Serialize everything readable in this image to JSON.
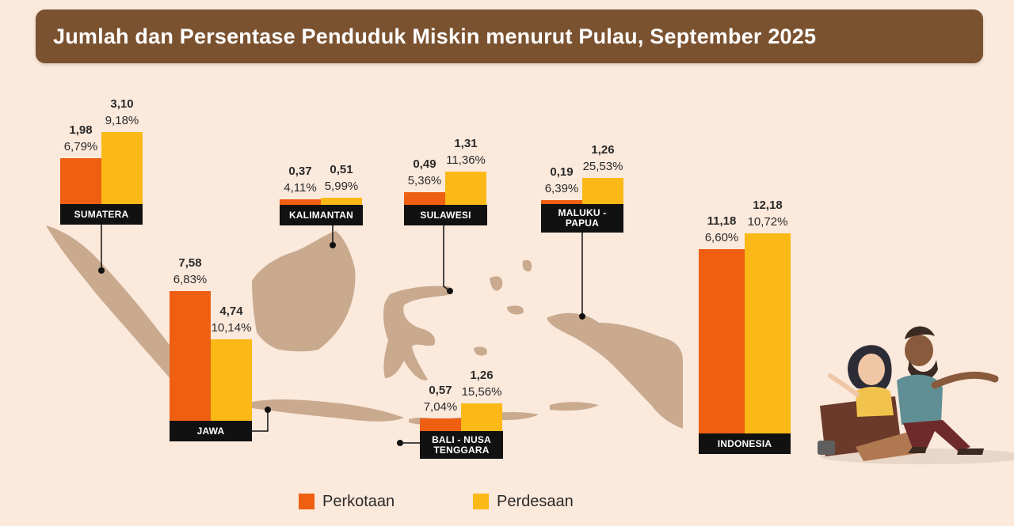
{
  "title": "Jumlah dan Persentase Penduduk Miskin menurut Pulau, September 2025",
  "colors": {
    "perkotaan": "#ee5f12",
    "perdesaan": "#fbb917",
    "map": "#c9aa8f",
    "header": "#7b5230"
  },
  "legend": [
    {
      "label": "Perkotaan",
      "color": "#ee5f12"
    },
    {
      "label": "Perdesaan",
      "color": "#fbb917"
    }
  ],
  "chart_data": {
    "type": "bar",
    "title": "Jumlah dan Persentase Penduduk Miskin menurut Pulau, September 2025",
    "categories": [
      "SUMATERA",
      "JAWA",
      "KALIMANTAN",
      "SULAWESI",
      "BALI - NUSA TENGGARA",
      "MALUKU - PAPUA",
      "INDONESIA"
    ],
    "series": [
      {
        "name": "Perkotaan",
        "values": [
          1.98,
          7.58,
          0.37,
          0.49,
          0.57,
          0.19,
          11.18
        ],
        "labels": [
          "6,79%",
          "6,83%",
          "4,11%",
          "5,36%",
          "7,04%",
          "6,39%",
          "6,60%"
        ]
      },
      {
        "name": "Perdesaan",
        "values": [
          3.1,
          4.74,
          0.51,
          1.31,
          1.26,
          1.26,
          12.18
        ],
        "labels": [
          "9,18%",
          "10,14%",
          "5,99%",
          "11,36%",
          "15,56%",
          "25,53%",
          "10,72%"
        ]
      }
    ],
    "regions": [
      {
        "name": "SUMATERA",
        "label": "SUMATERA",
        "urban": {
          "value": "1,98",
          "pct": "6,79%"
        },
        "rural": {
          "value": "3,10",
          "pct": "9,18%"
        }
      },
      {
        "name": "JAWA",
        "label": "JAWA",
        "urban": {
          "value": "7,58",
          "pct": "6,83%"
        },
        "rural": {
          "value": "4,74",
          "pct": "10,14%"
        }
      },
      {
        "name": "KALIMANTAN",
        "label": "KALIMANTAN",
        "urban": {
          "value": "0,37",
          "pct": "4,11%"
        },
        "rural": {
          "value": "0,51",
          "pct": "5,99%"
        }
      },
      {
        "name": "SULAWESI",
        "label": "SULAWESI",
        "urban": {
          "value": "0,49",
          "pct": "5,36%"
        },
        "rural": {
          "value": "1,31",
          "pct": "11,36%"
        }
      },
      {
        "name": "BALI - NUSA TENGGARA",
        "label": "BALI - NUSA\nTENGGARA",
        "urban": {
          "value": "0,57",
          "pct": "7,04%"
        },
        "rural": {
          "value": "1,26",
          "pct": "15,56%"
        }
      },
      {
        "name": "MALUKU - PAPUA",
        "label": "MALUKU -\nPAPUA",
        "urban": {
          "value": "0,19",
          "pct": "6,39%"
        },
        "rural": {
          "value": "1,26",
          "pct": "25,53%"
        }
      },
      {
        "name": "INDONESIA",
        "label": "INDONESIA",
        "urban": {
          "value": "11,18",
          "pct": "6,60%"
        },
        "rural": {
          "value": "12,18",
          "pct": "10,72%"
        }
      }
    ]
  }
}
